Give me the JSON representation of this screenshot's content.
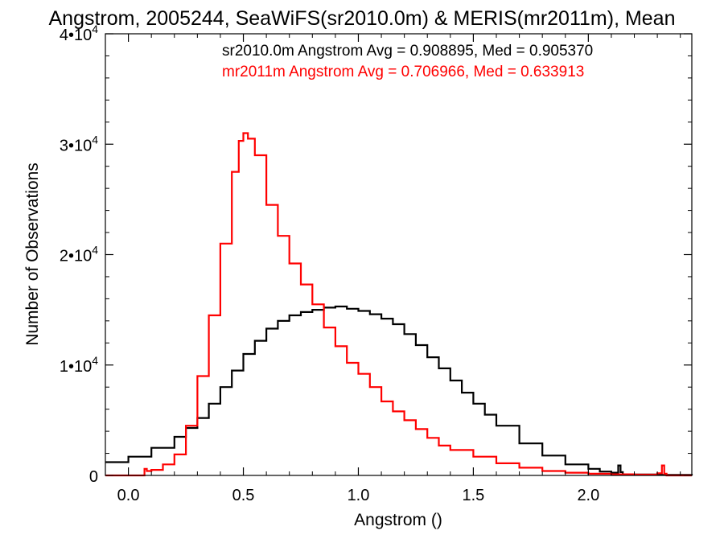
{
  "chart_data": {
    "type": "line",
    "step": true,
    "title": "Angstrom, 2005244, SeaWiFS(sr2010.0m) & MERIS(mr2011m), Mean",
    "xlabel": "Angstrom ()",
    "ylabel": "Number of Observations",
    "xlim": [
      -0.1,
      2.45
    ],
    "ylim": [
      0,
      40000
    ],
    "x_ticks": [
      {
        "value": 0.0,
        "label": "0.0"
      },
      {
        "value": 0.5,
        "label": "0.5"
      },
      {
        "value": 1.0,
        "label": "1.0"
      },
      {
        "value": 1.5,
        "label": "1.5"
      },
      {
        "value": 2.0,
        "label": "2.0"
      }
    ],
    "y_ticks": [
      {
        "value": 0,
        "mantissa": "0",
        "exponent": ""
      },
      {
        "value": 10000,
        "mantissa": "1•10",
        "exponent": "4"
      },
      {
        "value": 20000,
        "mantissa": "2•10",
        "exponent": "4"
      },
      {
        "value": 30000,
        "mantissa": "3•10",
        "exponent": "4"
      },
      {
        "value": 40000,
        "mantissa": "4•10",
        "exponent": "4"
      }
    ],
    "legend_position": "top-right",
    "grid": false,
    "series": [
      {
        "name": "sr2010.0m",
        "color": "#000000",
        "legend_text": "sr2010.0m Angstrom Avg = 0.908895, Med = 0.905370",
        "x": [
          -0.1,
          0.0,
          0.1,
          0.2,
          0.25,
          0.3,
          0.35,
          0.4,
          0.45,
          0.5,
          0.55,
          0.6,
          0.65,
          0.7,
          0.75,
          0.8,
          0.85,
          0.9,
          0.95,
          1.0,
          1.05,
          1.1,
          1.15,
          1.2,
          1.25,
          1.3,
          1.35,
          1.4,
          1.45,
          1.5,
          1.55,
          1.6,
          1.7,
          1.8,
          1.9,
          2.0,
          2.05,
          2.1,
          2.13,
          2.14,
          2.15,
          2.2,
          2.3,
          2.45
        ],
        "y": [
          1200,
          1700,
          2500,
          3500,
          4300,
          5200,
          6500,
          8000,
          9500,
          11000,
          12200,
          13300,
          14000,
          14500,
          14800,
          15000,
          15200,
          15300,
          15100,
          14900,
          14600,
          14200,
          13700,
          12800,
          11800,
          10700,
          9700,
          8600,
          7500,
          6500,
          5500,
          4500,
          2900,
          1800,
          1000,
          600,
          350,
          250,
          900,
          300,
          100,
          80,
          50,
          0
        ]
      },
      {
        "name": "mr2011m",
        "color": "#ff0000",
        "legend_text": "mr2011m Angstrom Avg = 0.706966, Med = 0.633913",
        "x": [
          -0.1,
          0.05,
          0.07,
          0.08,
          0.1,
          0.15,
          0.2,
          0.25,
          0.3,
          0.35,
          0.4,
          0.45,
          0.48,
          0.5,
          0.52,
          0.55,
          0.6,
          0.65,
          0.7,
          0.75,
          0.8,
          0.85,
          0.9,
          0.95,
          1.0,
          1.05,
          1.1,
          1.15,
          1.2,
          1.25,
          1.3,
          1.35,
          1.4,
          1.5,
          1.6,
          1.7,
          1.8,
          1.9,
          2.0,
          2.1,
          2.2,
          2.3,
          2.32,
          2.33,
          2.34,
          2.45
        ],
        "y": [
          0,
          0,
          600,
          400,
          500,
          1000,
          1900,
          4500,
          9000,
          14500,
          21000,
          27500,
          30300,
          31000,
          30500,
          29000,
          24500,
          21700,
          19200,
          17300,
          15500,
          13400,
          11700,
          10200,
          9200,
          8000,
          6700,
          5800,
          5000,
          4200,
          3400,
          2700,
          2300,
          1700,
          1100,
          700,
          400,
          250,
          150,
          100,
          70,
          200,
          900,
          150,
          0,
          0
        ]
      }
    ]
  }
}
